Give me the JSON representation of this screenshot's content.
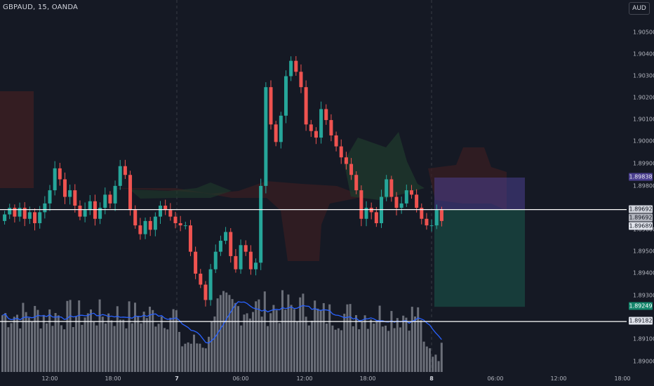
{
  "header": {
    "symbol_title": "GBPAUD, 15, OANDA",
    "currency_button": "AUD"
  },
  "price_axis": {
    "ticks": [
      "1.90500",
      "1.90400",
      "1.90300",
      "1.90200",
      "1.90100",
      "1.90000",
      "1.89900",
      "1.89800",
      "1.89600",
      "1.89500",
      "1.89400",
      "1.89300",
      "1.89100",
      "1.89000"
    ]
  },
  "price_badges": {
    "upper_level": "1.89838",
    "hline_top": "1.89692",
    "last_price": "1.89692",
    "current": "1.89689",
    "lower_level": "1.89249",
    "hline_bottom": "1.89182"
  },
  "time_axis": {
    "labels": [
      "12:00",
      "18:00",
      "7",
      "06:00",
      "12:00",
      "18:00",
      "8",
      "06:00",
      "12:00",
      "18:00"
    ]
  },
  "colors": {
    "background": "#151924",
    "up_candle": "#26a69a",
    "down_candle": "#ef5350",
    "volume": "#6b6f79",
    "volume_ma": "#2962ff",
    "horizontal_line": "#ffffff",
    "cloud_green": "#1f3a2c",
    "cloud_red": "#3a1e22",
    "position_stop": "#4a3f8f",
    "position_target": "#1a5a4c"
  },
  "chart_data": {
    "type": "candlestick",
    "symbol": "GBPAUD",
    "timeframe": "15",
    "ylim": [
      1.8897,
      1.906
    ],
    "horizontal_lines": [
      1.89692,
      1.89182
    ],
    "position": {
      "entry": 1.89692,
      "stop": 1.89838,
      "target": 1.89249
    },
    "day_separators": [
      "7",
      "8"
    ],
    "candle_closes_approx": [
      1.8967,
      1.897,
      1.8966,
      1.897,
      1.8965,
      1.8968,
      1.8963,
      1.8968,
      1.8972,
      1.8978,
      1.8988,
      1.8983,
      1.8975,
      1.8978,
      1.8971,
      1.8966,
      1.8969,
      1.8973,
      1.8965,
      1.897,
      1.8976,
      1.8972,
      1.898,
      1.8989,
      1.8985,
      1.8969,
      1.8962,
      1.8958,
      1.8964,
      1.896,
      1.8966,
      1.8971,
      1.8969,
      1.8966,
      1.8963,
      1.8962,
      1.8962,
      1.895,
      1.894,
      1.8935,
      1.8928,
      1.8942,
      1.895,
      1.8955,
      1.8959,
      1.8948,
      1.8942,
      1.8953,
      1.895,
      1.8942,
      1.8945,
      1.898,
      1.9025,
      1.9008,
      1.9,
      1.9012,
      1.903,
      1.9037,
      1.9032,
      1.9025,
      1.9008,
      1.9005,
      1.9002,
      1.9015,
      1.901,
      1.9003,
      1.8998,
      1.8993,
      1.899,
      1.8985,
      1.8978,
      1.8965,
      1.897,
      1.8968,
      1.8963,
      1.8975,
      1.8983,
      1.8975,
      1.897,
      1.8972,
      1.8978,
      1.8976,
      1.897,
      1.8965,
      1.8962,
      1.8962,
      1.8969,
      1.8964
    ]
  }
}
